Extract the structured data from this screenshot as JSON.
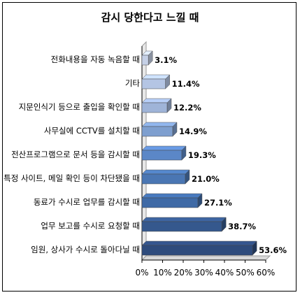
{
  "chart_data": {
    "type": "bar",
    "orientation": "horizontal",
    "title": "감시 당한다고 느낄 때",
    "categories": [
      "전화내용을 자동 녹음할 때",
      "기타",
      "지문인식기 등으로 출입을 확인할 때",
      "사무실에 CCTV를 설치할 때",
      "전산프로그램으로 문서 등을 감시할 때",
      "특정 사이트, 메일 확인 등이 차단됐을 때",
      "동료가 수시로 업무를 감시할 때",
      "업무 보고를 수시로 요청할 때",
      "임원, 상사가 수시로 돌아다닐 때"
    ],
    "values": [
      3.1,
      11.4,
      12.2,
      14.9,
      19.3,
      21.0,
      27.1,
      38.7,
      53.6
    ],
    "value_labels": [
      "3.1%",
      "11.4%",
      "12.2%",
      "14.9%",
      "19.3%",
      "21.0%",
      "27.1%",
      "38.7%",
      "53.6%"
    ],
    "bar_colors": [
      "#c5d0e6",
      "#b4c5e4",
      "#9fb4d8",
      "#7e9fcf",
      "#5b87c7",
      "#4a76b3",
      "#3f6aa6",
      "#35588d",
      "#2e4b7c"
    ],
    "xlim": [
      0,
      60
    ],
    "x_ticks": [
      "0%",
      "10%",
      "20%",
      "30%",
      "40%",
      "50%",
      "60%"
    ],
    "grid": false,
    "legend": "none"
  }
}
